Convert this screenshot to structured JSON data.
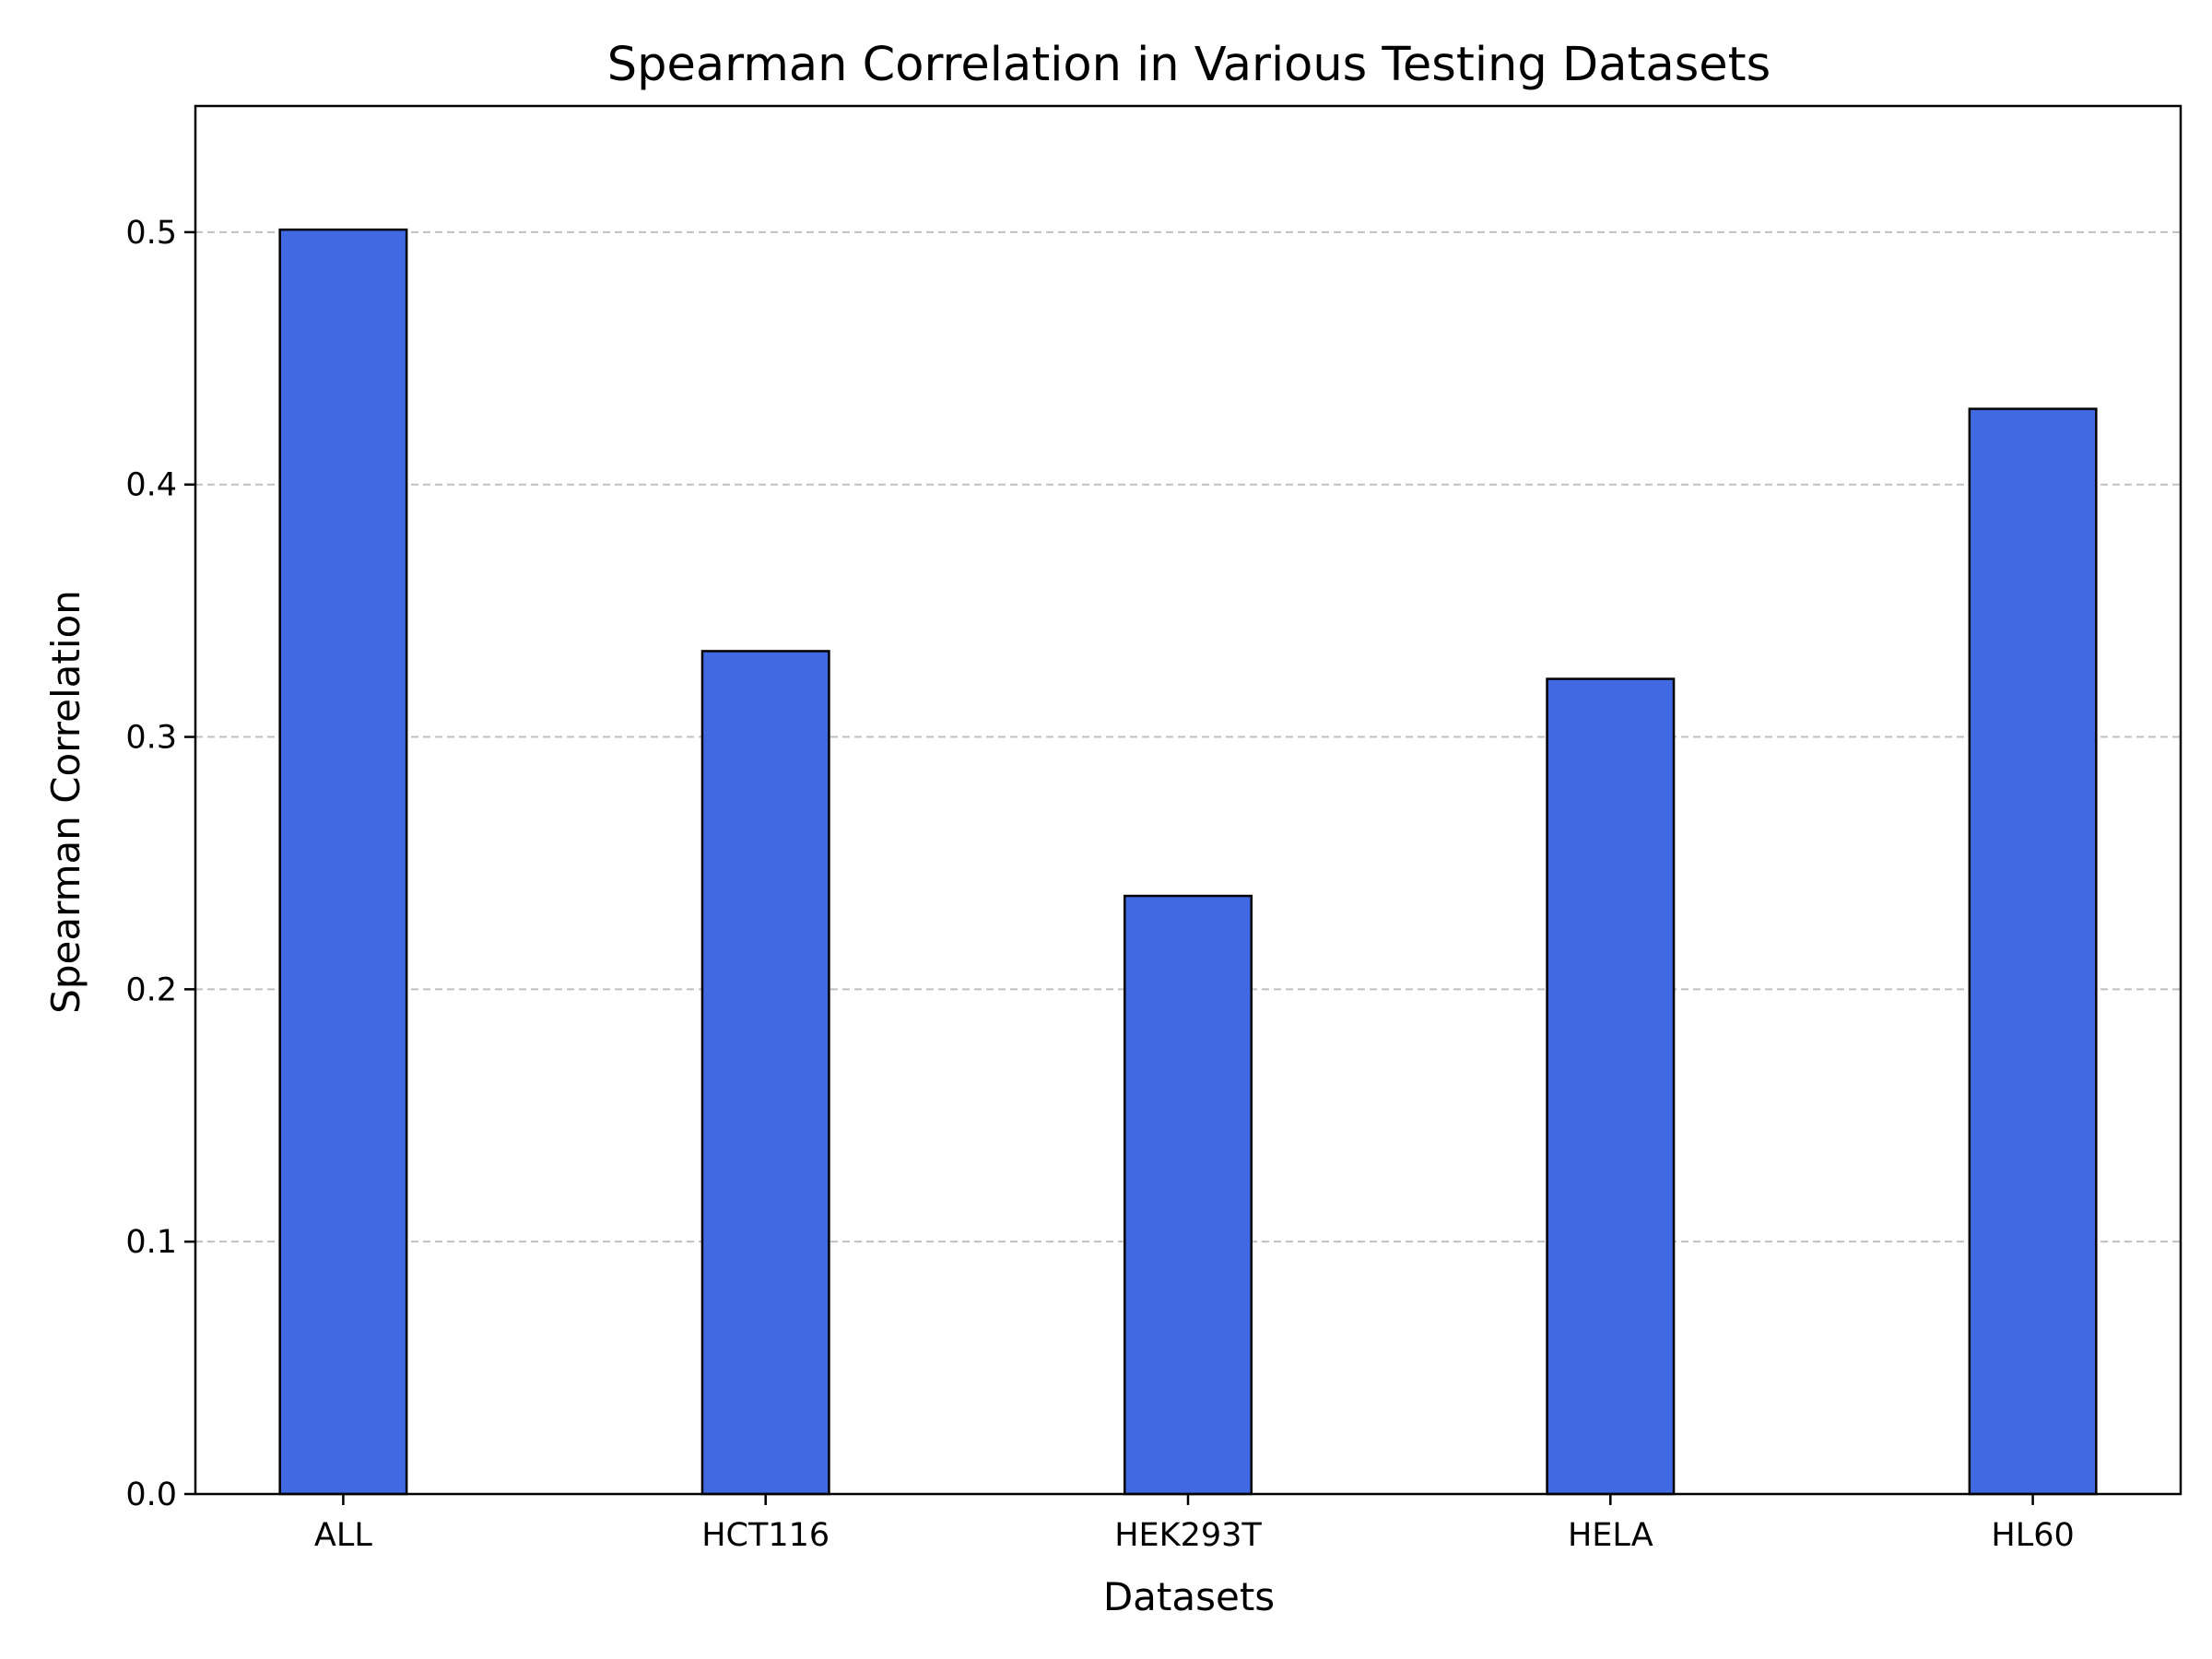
{
  "chart_data": {
    "type": "bar",
    "title": "Spearman Correlation in Various Testing Datasets",
    "xlabel": "Datasets",
    "ylabel": "Spearman Correlation",
    "categories": [
      "ALL",
      "HCT116",
      "HEK293T",
      "HELA",
      "HL60"
    ],
    "values": [
      0.501,
      0.334,
      0.237,
      0.323,
      0.43
    ],
    "ylim": [
      0,
      0.55
    ],
    "yticks": [
      "0.0",
      "0.1",
      "0.2",
      "0.3",
      "0.4",
      "0.5"
    ],
    "grid": "y-dashed",
    "bar_color": "#4169e1",
    "bar_edge_color": "#000000",
    "grid_color": "#c0c0c0"
  }
}
